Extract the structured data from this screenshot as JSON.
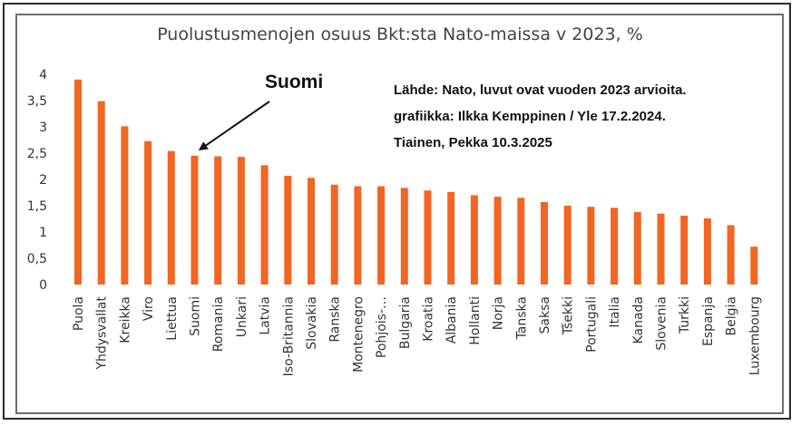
{
  "chart_data": {
    "type": "bar",
    "title": "Puolustusmenojen osuus Bkt:sta Nato-maissa v 2023, %",
    "xlabel": "",
    "ylabel": "",
    "ylim": [
      0,
      4
    ],
    "yticks": [
      "0",
      "0,5",
      "1",
      "1,5",
      "2",
      "2,5",
      "3",
      "3,5",
      "4"
    ],
    "grid": false,
    "bar_color": "#f26522",
    "categories": [
      "Puola",
      "Yhdysvallat",
      "Kreikka",
      "Viro",
      "Liettua",
      "Suomi",
      "Romania",
      "Unkari",
      "Latvia",
      "Iso-Britannia",
      "Slovakia",
      "Ranska",
      "Montenegro",
      "Pohjois-…",
      "Bulgaria",
      "Kroatia",
      "Albania",
      "Hollanti",
      "Norja",
      "Tanska",
      "Saksa",
      "Tšekki",
      "Portugali",
      "Italia",
      "Kanada",
      "Slovenia",
      "Turkki",
      "Espanja",
      "Belgia",
      "Luxembourg"
    ],
    "values": [
      3.9,
      3.49,
      3.01,
      2.73,
      2.54,
      2.45,
      2.44,
      2.43,
      2.27,
      2.07,
      2.03,
      1.9,
      1.87,
      1.87,
      1.84,
      1.79,
      1.76,
      1.7,
      1.67,
      1.65,
      1.57,
      1.5,
      1.48,
      1.46,
      1.38,
      1.35,
      1.31,
      1.26,
      1.13,
      0.72
    ],
    "annotation": {
      "label": "Suomi",
      "target": "Suomi"
    },
    "source_lines": [
      "Lähde: Nato, luvut ovat vuoden 2023 arvioita.",
      "grafiikka: Ilkka Kemppinen / Yle 17.2.2024.",
      "Tiainen, Pekka 10.3.2025"
    ]
  }
}
